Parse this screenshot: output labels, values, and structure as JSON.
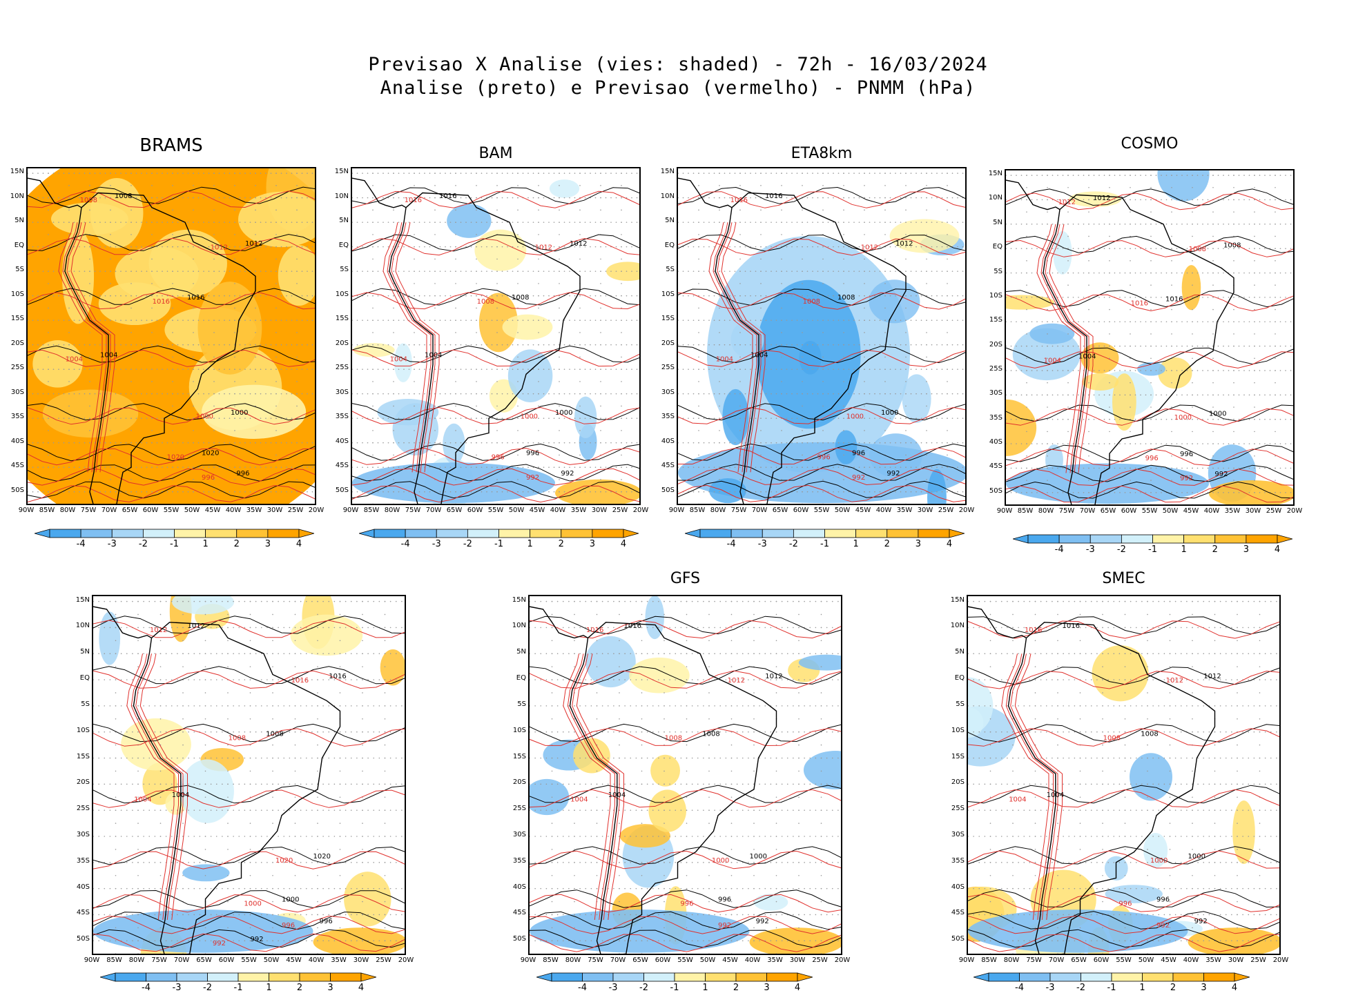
{
  "figure": {
    "title_line1": "Previsao X Analise (vies: shaded) - 72h - 16/03/2024",
    "title_line2": "Analise (preto) e Previsao (vermelho) - PNMM (hPa)"
  },
  "axes": {
    "lat_labels": [
      "15N",
      "10N",
      "5N",
      "EQ",
      "5S",
      "10S",
      "15S",
      "20S",
      "25S",
      "30S",
      "35S",
      "40S",
      "45S",
      "50S"
    ],
    "lon_labels": [
      "90W",
      "85W",
      "80W",
      "75W",
      "70W",
      "65W",
      "60W",
      "55W",
      "50W",
      "45W",
      "40W",
      "35W",
      "30W",
      "25W",
      "20W"
    ]
  },
  "colorbar": {
    "labels": [
      "-4",
      "-3",
      "-2",
      "-1",
      "1",
      "2",
      "3",
      "4"
    ],
    "colors": [
      "#4aa8ee",
      "#7fbff2",
      "#a8d6f6",
      "#d2f0fa",
      "#ffffff",
      "#fff3a8",
      "#ffe070",
      "#ffc235",
      "#ffa400"
    ]
  },
  "legend": {
    "analysis_color": "#000000",
    "forecast_color": "#e0302c"
  },
  "panels": [
    {
      "name": "BRAMS",
      "bias": "warm",
      "contour_labels": [
        "1008",
        "1012",
        "1016",
        "1004",
        "1000",
        "1020",
        "996"
      ]
    },
    {
      "name": "BAM",
      "bias": "mixed",
      "contour_labels": [
        "1016",
        "1012",
        "1008",
        "1004",
        "1000",
        "996",
        "992"
      ]
    },
    {
      "name": "ETA8km",
      "bias": "cold",
      "contour_labels": [
        "1016",
        "1012",
        "1008",
        "1004",
        "1000",
        "996",
        "992"
      ]
    },
    {
      "name": "COSMO",
      "bias": "mixed",
      "contour_labels": [
        "1012",
        "1008",
        "1016",
        "1004",
        "1000",
        "996",
        "992"
      ]
    },
    {
      "name": "",
      "bias": "mixed",
      "contour_labels": [
        "1012",
        "1016",
        "1008",
        "1004",
        "1020",
        "1000",
        "996",
        "992"
      ]
    },
    {
      "name": "GFS",
      "bias": "mixed",
      "contour_labels": [
        "1016",
        "1012",
        "1008",
        "1004",
        "1000",
        "996",
        "992"
      ]
    },
    {
      "name": "SMEC",
      "bias": "mixed",
      "contour_labels": [
        "1016",
        "1012",
        "1008",
        "1004",
        "1000",
        "996",
        "992"
      ]
    }
  ]
}
